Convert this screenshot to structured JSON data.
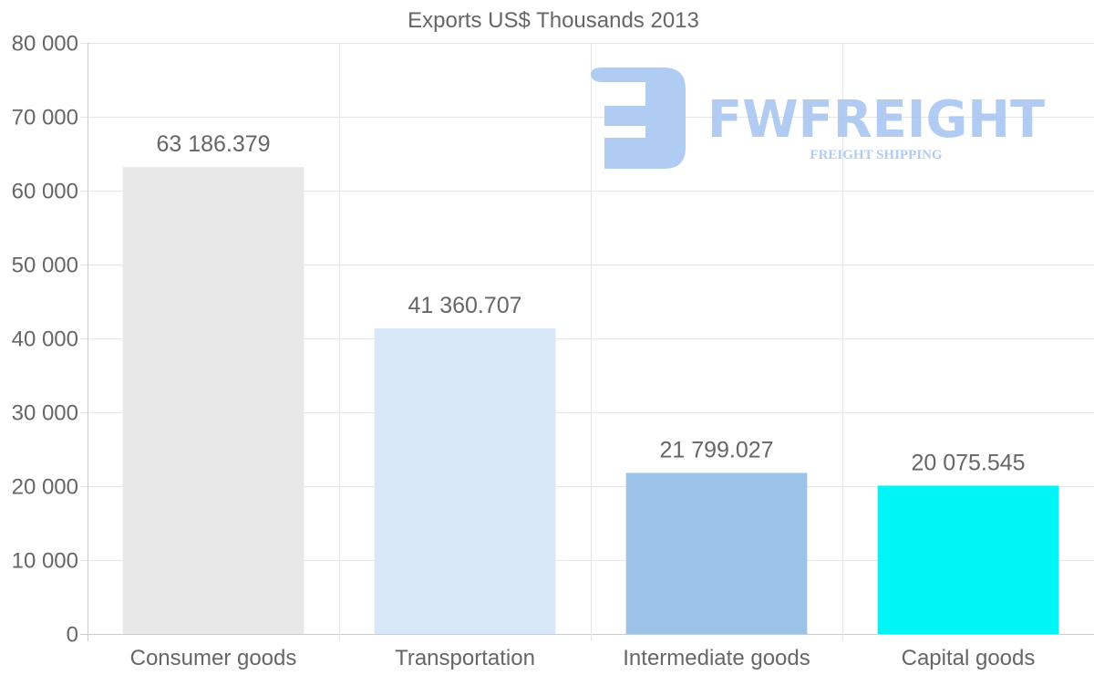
{
  "chart_data": {
    "type": "bar",
    "title": "Exports US$ Thousands 2013",
    "categories": [
      "Consumer goods",
      "Transportation",
      "Intermediate goods",
      "Capital goods"
    ],
    "values": [
      63186.379,
      41360.707,
      21799.027,
      20075.545
    ],
    "data_labels": [
      "63 186.379",
      "41 360.707",
      "21 799.027",
      "20 075.545"
    ],
    "colors": [
      "#e8e8e8",
      "#d8e8f8",
      "#9bc4e8",
      "#00f6f6"
    ],
    "xlabel": "",
    "ylabel": "",
    "ylim": [
      0,
      80000
    ],
    "yticks": [
      0,
      10000,
      20000,
      30000,
      40000,
      50000,
      60000,
      70000,
      80000
    ],
    "ytick_labels": [
      "0",
      "10 000",
      "20 000",
      "30 000",
      "40 000",
      "50 000",
      "60 000",
      "70 000",
      "80 000"
    ],
    "grid": true,
    "legend": "none"
  },
  "watermark": {
    "brand": "FWFREIGHT",
    "tagline": "FREIGHT SHIPPING",
    "color": "#a9c6f2"
  }
}
